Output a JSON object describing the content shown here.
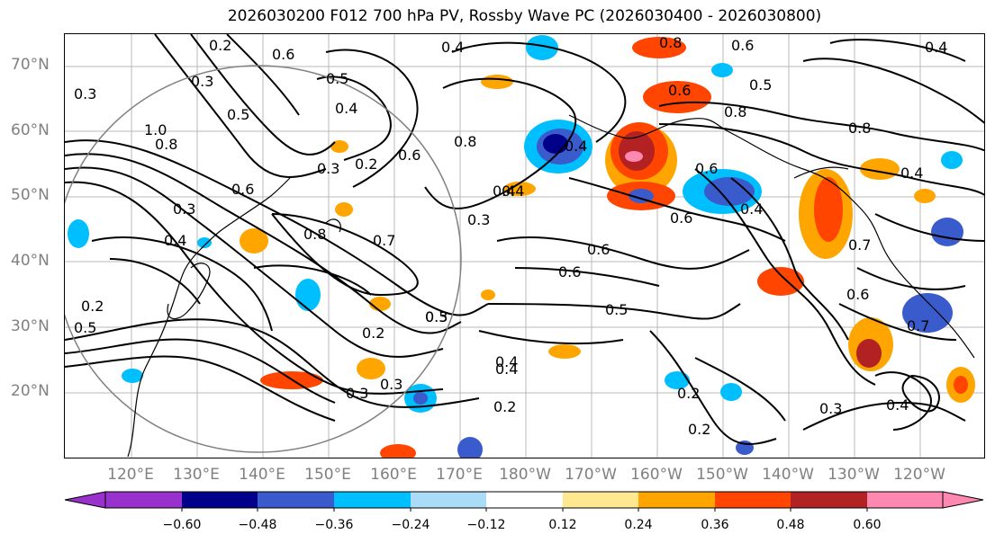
{
  "title": "2026030200 F012 700 hPa PV, Rossby Wave PC (2026030400 - 2026030800)",
  "lat_labels": [
    "70°N",
    "60°N",
    "50°N",
    "40°N",
    "30°N",
    "20°N"
  ],
  "lon_labels": [
    "120°E",
    "130°E",
    "140°E",
    "150°E",
    "160°E",
    "170°E",
    "180°W",
    "170°W",
    "160°W",
    "150°W",
    "140°W",
    "130°W",
    "120°W"
  ],
  "colorbar": {
    "ticks": [
      "−0.60",
      "−0.48",
      "−0.36",
      "−0.24",
      "−0.12",
      "0.12",
      "0.24",
      "0.36",
      "0.48",
      "0.60"
    ],
    "colors": [
      "#9932cc",
      "#00008b",
      "#3a5bcc",
      "#00bfff",
      "#aadcf8",
      "#ffffff",
      "#ffe890",
      "#ffa500",
      "#ff4500",
      "#b22222",
      "#ff88b0"
    ]
  },
  "contour_labels": [
    "0.4",
    "0.2",
    "0.6",
    "0.3",
    "0.5",
    "0.4",
    "0.6",
    "0.8",
    "0.6",
    "0.5",
    "0.4",
    "0.3",
    "1.0",
    "0.8",
    "0.5",
    "0.3",
    "0.2",
    "0.6",
    "0.3",
    "0.4",
    "0.8",
    "0.7",
    "0.6",
    "0.8",
    "0.4",
    "0.6",
    "0.5",
    "0.6",
    "0.4",
    "0.5",
    "0.2",
    "0.3",
    "0.3",
    "0.4",
    "0.2",
    "0.2",
    "0.2",
    "0.3",
    "0.4",
    "0.7",
    "0.6",
    "0.7",
    "0.8",
    "0.6",
    "0.4",
    "0.6",
    "0.3",
    "0.4",
    "0.5",
    "0.2",
    "0.3",
    "0.8",
    "0.4",
    "0.4"
  ]
}
